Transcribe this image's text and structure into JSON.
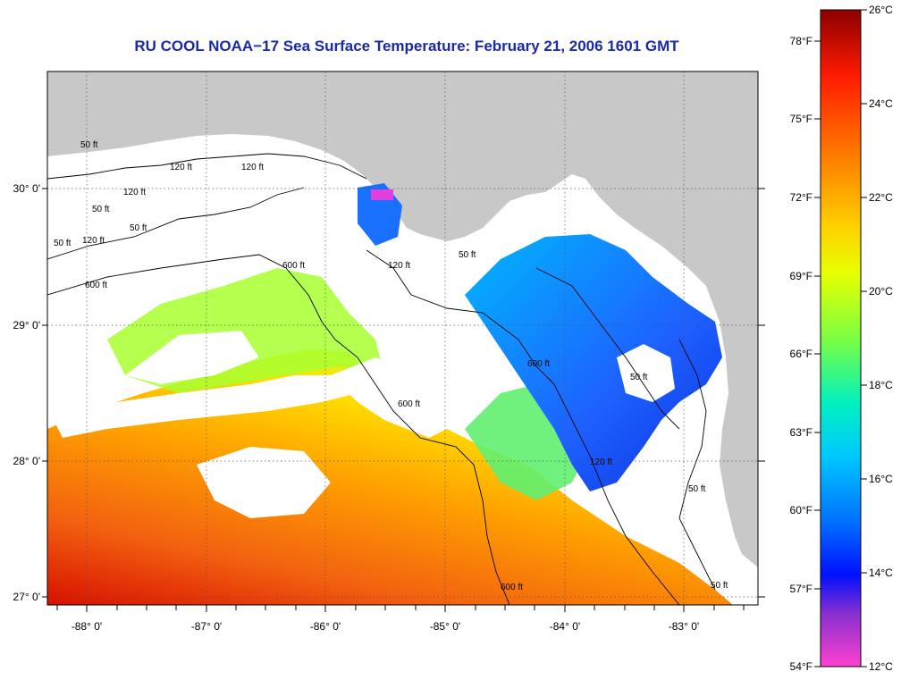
{
  "title": "RU COOL  NOAA−17  Sea Surface Temperature:  February 21, 2006 1601 GMT",
  "axes": {
    "lon_labels": [
      "-88° 0'",
      "-87° 0'",
      "-86° 0'",
      "-85° 0'",
      "-84° 0'",
      "-83° 0'"
    ],
    "lat_labels": [
      "30° 0'",
      "29° 0'",
      "28° 0'",
      "27° 0'"
    ]
  },
  "colorbar": {
    "celsius_labels": [
      "26°C",
      "24°C",
      "22°C",
      "20°C",
      "18°C",
      "16°C",
      "14°C",
      "12°C"
    ],
    "fahrenheit_labels": [
      "78°F",
      "75°F",
      "72°F",
      "69°F",
      "66°F",
      "63°F",
      "60°F",
      "57°F",
      "54°F"
    ],
    "celsius_range": [
      12,
      26
    ],
    "gradient_colors": [
      "#8b0000",
      "#ff1a00",
      "#ff7a00",
      "#ffd000",
      "#e8ff00",
      "#7cff40",
      "#00f0c0",
      "#00c8ff",
      "#0070ff",
      "#0010ff",
      "#8a30d0",
      "#ff40d0"
    ]
  },
  "depth_contours": {
    "labels": [
      "50 ft",
      "120 ft",
      "600 ft",
      "120 ft",
      "50 ft",
      "600 ft",
      "600 ft",
      "600 ft",
      "120 ft",
      "50 ft",
      "120 ft",
      "50 ft",
      "120 ft",
      "50 ft",
      "50 ft",
      "120 ft",
      "50 ft",
      "600 ft",
      "50 ft"
    ]
  },
  "colors": {
    "land": "#c8c8c8",
    "cloud": "#ffffff",
    "title": "#1a2aa8"
  }
}
